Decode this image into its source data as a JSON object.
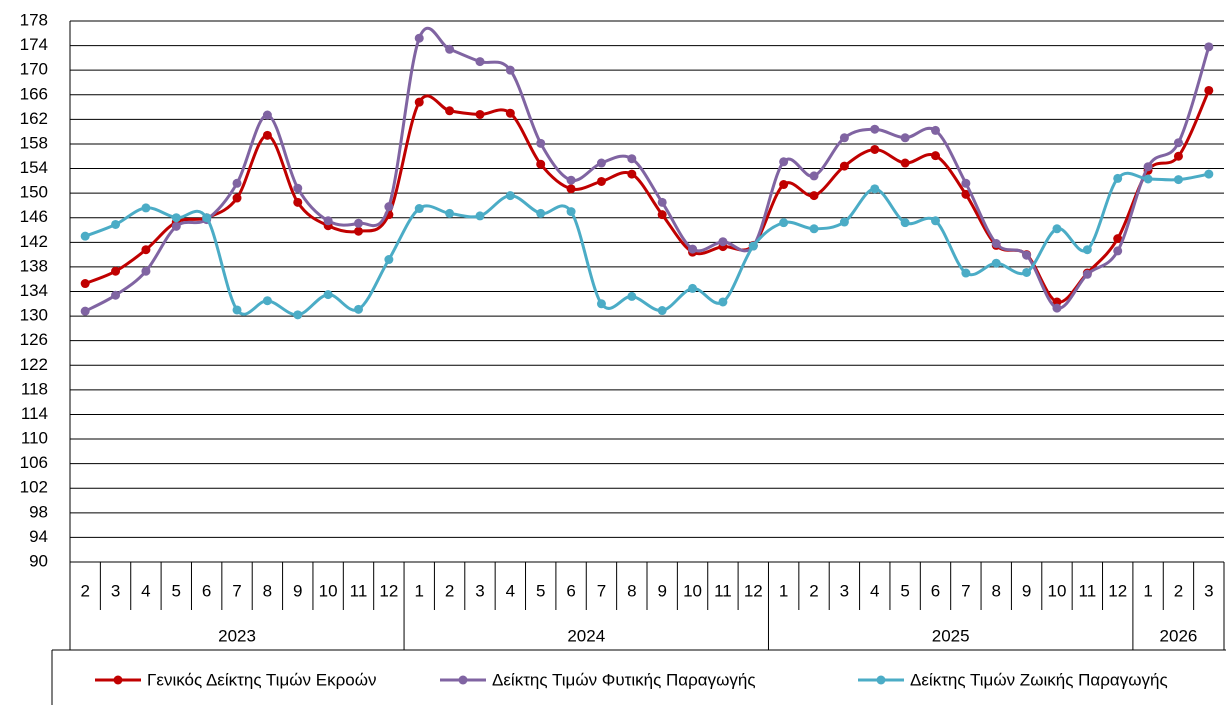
{
  "chart_data": {
    "type": "line",
    "category_groups": [
      {
        "label": "2023",
        "categories": [
          "2",
          "3",
          "4",
          "5",
          "6",
          "7",
          "8",
          "9",
          "10",
          "11",
          "12"
        ]
      },
      {
        "label": "2024",
        "categories": [
          "1",
          "2",
          "3",
          "4",
          "5",
          "6",
          "7",
          "8",
          "9",
          "10",
          "11",
          "12"
        ]
      },
      {
        "label": "2025",
        "categories": [
          "1",
          "2",
          "3",
          "4",
          "5",
          "6",
          "7",
          "8",
          "9",
          "10",
          "11",
          "12"
        ]
      },
      {
        "label": "2026",
        "categories": [
          "1",
          "2",
          "3"
        ]
      }
    ],
    "series": [
      {
        "name": "Γενικός Δείκτης Τιμών Εκροών",
        "color": "#c00000",
        "values": [
          135.3,
          137.3,
          140.8,
          145.3,
          146.0,
          149.2,
          159.4,
          148.5,
          144.7,
          143.8,
          146.5,
          164.8,
          163.4,
          162.8,
          163.0,
          154.7,
          150.7,
          151.9,
          153.1,
          146.5,
          140.4,
          141.3,
          141.5,
          151.4,
          149.6,
          154.4,
          157.1,
          154.9,
          156.1,
          149.8,
          141.5,
          140.0,
          132.3,
          137.0,
          142.6,
          153.7,
          156.0,
          166.7
        ]
      },
      {
        "name": "Δείκτης Τιμών Φυτικής Παραγωγής",
        "color": "#8064a2",
        "values": [
          130.8,
          133.4,
          137.3,
          144.6,
          145.7,
          151.6,
          162.7,
          150.8,
          145.5,
          145.1,
          147.8,
          175.2,
          173.4,
          171.4,
          170.0,
          158.1,
          152.1,
          154.9,
          155.6,
          148.5,
          140.9,
          142.1,
          141.4,
          155.1,
          152.8,
          159.0,
          160.4,
          159.0,
          160.2,
          151.6,
          141.8,
          139.9,
          131.3,
          136.8,
          140.6,
          154.3,
          158.2,
          173.8
        ]
      },
      {
        "name": "Δείκτης Τιμών Ζωικής Παραγωγής",
        "color": "#4bacc6",
        "values": [
          143.0,
          144.9,
          147.6,
          146.0,
          146.0,
          131.0,
          132.5,
          130.2,
          133.5,
          131.1,
          139.2,
          147.5,
          146.7,
          146.3,
          149.6,
          146.7,
          147.0,
          132.0,
          133.2,
          130.9,
          134.5,
          132.3,
          141.4,
          145.2,
          144.2,
          145.3,
          150.7,
          145.2,
          145.5,
          137.0,
          138.6,
          137.1,
          144.2,
          140.8,
          152.4,
          152.3,
          152.2,
          153.1
        ]
      }
    ],
    "ylim": [
      90,
      178
    ],
    "yticks": [
      90,
      94,
      98,
      102,
      106,
      110,
      114,
      118,
      122,
      126,
      130,
      134,
      138,
      142,
      146,
      150,
      154,
      158,
      162,
      166,
      170,
      174,
      178
    ],
    "grid": true
  }
}
